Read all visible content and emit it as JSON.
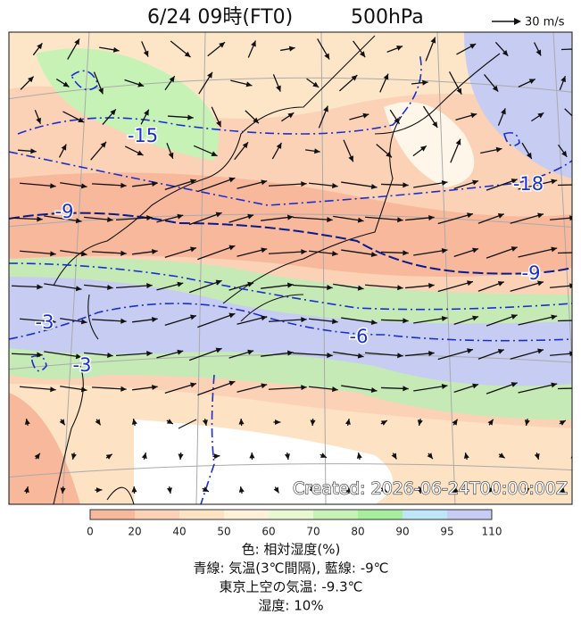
{
  "header": {
    "title_time": "6/24 09時(FT0)",
    "title_level": "500hPa",
    "scale_label": "30 m/s"
  },
  "map": {
    "contour_labels": [
      "-15",
      "-18",
      "-9",
      "-9",
      "-3",
      "-3",
      "-6"
    ],
    "created": "Created: 2026-06-24T00:00:00Z"
  },
  "colorbar": {
    "ticks": [
      0,
      20,
      40,
      50,
      60,
      70,
      80,
      90,
      95,
      110
    ]
  },
  "caption": {
    "lines": [
      "色: 相対湿度(%)",
      "青線: 気温(3℃間隔), 藍線: -9℃",
      "東京上空の気温: -9.3℃",
      "湿度: 10%"
    ]
  }
}
